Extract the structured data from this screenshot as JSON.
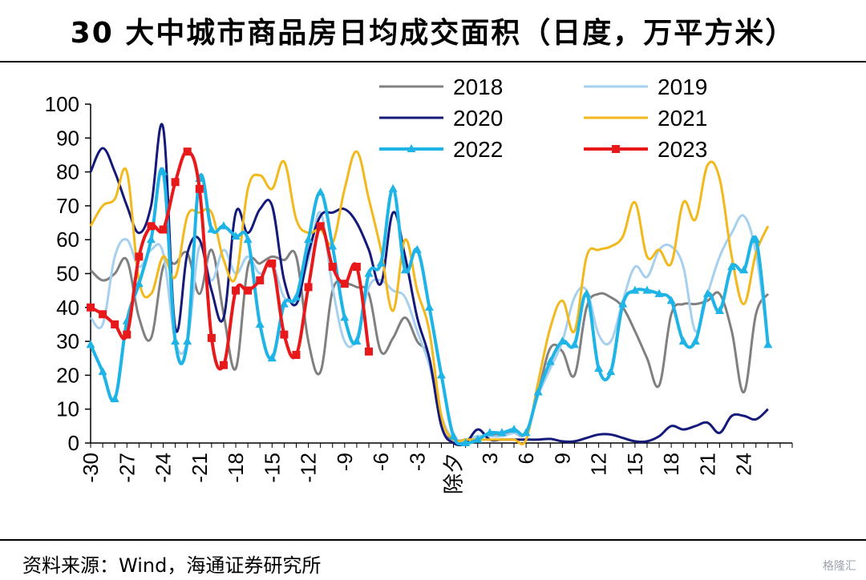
{
  "title": "30 大中城市商品房日均成交面积（日度，万平方米）",
  "source": "资料来源：Wind，海通证券研究所",
  "watermark": "格隆汇",
  "chart_data": {
    "type": "line",
    "xlabel": "",
    "ylabel": "",
    "xlim": [
      -30,
      28
    ],
    "ylim": [
      0,
      100
    ],
    "yticks": [
      0,
      10,
      20,
      30,
      40,
      50,
      60,
      70,
      80,
      90,
      100
    ],
    "xticks": [
      {
        "x": -30,
        "label": "-30"
      },
      {
        "x": -27,
        "label": "-27"
      },
      {
        "x": -24,
        "label": "-24"
      },
      {
        "x": -21,
        "label": "-21"
      },
      {
        "x": -18,
        "label": "-18"
      },
      {
        "x": -15,
        "label": "-15"
      },
      {
        "x": -12,
        "label": "-12"
      },
      {
        "x": -9,
        "label": "-9"
      },
      {
        "x": -6,
        "label": "-6"
      },
      {
        "x": -3,
        "label": "-3"
      },
      {
        "x": 0,
        "label": "除夕"
      },
      {
        "x": 3,
        "label": "3"
      },
      {
        "x": 6,
        "label": "6"
      },
      {
        "x": 9,
        "label": "9"
      },
      {
        "x": 12,
        "label": "12"
      },
      {
        "x": 15,
        "label": "15"
      },
      {
        "x": 18,
        "label": "18"
      },
      {
        "x": 21,
        "label": "21"
      },
      {
        "x": 24,
        "label": "24"
      }
    ],
    "legend_position": "top",
    "series": [
      {
        "name": "2018",
        "color": "#808080",
        "width": 3,
        "marker": "none",
        "x": [
          -30,
          -29,
          -28,
          -27,
          -26,
          -25,
          -24,
          -23,
          -22,
          -21,
          -20,
          -19,
          -18,
          -17,
          -16,
          -15,
          -14,
          -13,
          -12,
          -11,
          -10,
          -9,
          -8,
          -7,
          -6,
          -5,
          -4,
          -3,
          -2,
          -1,
          0,
          1,
          2,
          3,
          4,
          5,
          6,
          7,
          8,
          9,
          10,
          11,
          12,
          13,
          14,
          15,
          16,
          17,
          18,
          19,
          20,
          21,
          22,
          23,
          24,
          25,
          26
        ],
        "y": [
          51,
          48,
          50,
          54,
          37,
          31,
          52,
          53,
          56,
          44,
          57,
          38,
          22,
          52,
          53,
          55,
          54,
          55,
          30,
          21,
          45,
          47,
          46,
          44,
          27,
          31,
          37,
          30,
          25,
          5,
          1,
          1,
          2,
          2,
          3,
          3,
          3,
          15,
          28,
          27,
          20,
          40,
          44,
          43,
          40,
          33,
          25,
          17,
          38,
          41,
          41,
          42,
          44,
          33,
          15,
          38,
          44
        ]
      },
      {
        "name": "2019",
        "color": "#a7d0ee",
        "width": 3,
        "marker": "none",
        "x": [
          -30,
          -29,
          -28,
          -27,
          -26,
          -25,
          -24,
          -23,
          -22,
          -21,
          -20,
          -19,
          -18,
          -17,
          -16,
          -15,
          -14,
          -13,
          -12,
          -11,
          -10,
          -9,
          -8,
          -7,
          -6,
          -5,
          -4,
          -3,
          -2,
          -1,
          0,
          1,
          2,
          3,
          4,
          5,
          6,
          7,
          8,
          9,
          10,
          11,
          12,
          13,
          14,
          15,
          16,
          17,
          18,
          19,
          20,
          21,
          22,
          23,
          24,
          25,
          26
        ],
        "y": [
          37,
          35,
          55,
          60,
          52,
          57,
          56,
          30,
          30,
          58,
          48,
          57,
          50,
          55,
          50,
          53,
          43,
          43,
          54,
          68,
          46,
          30,
          31,
          46,
          48,
          45,
          43,
          33,
          23,
          8,
          1,
          1,
          2,
          2,
          2,
          3,
          3,
          14,
          22,
          30,
          43,
          45,
          32,
          30,
          42,
          52,
          49,
          57,
          58,
          52,
          33,
          44,
          55,
          62,
          67,
          56,
          30
        ]
      },
      {
        "name": "2020",
        "color": "#14197a",
        "width": 3,
        "marker": "none",
        "x": [
          -30,
          -29,
          -28,
          -27,
          -26,
          -25,
          -24,
          -23,
          -22,
          -21,
          -20,
          -19,
          -18,
          -17,
          -16,
          -15,
          -14,
          -13,
          -12,
          -11,
          -10,
          -9,
          -8,
          -7,
          -6,
          -5,
          -4,
          -3,
          -2,
          -1,
          0,
          1,
          2,
          3,
          4,
          5,
          6,
          7,
          8,
          9,
          10,
          11,
          12,
          13,
          14,
          15,
          16,
          17,
          18,
          19,
          20,
          21,
          22,
          23,
          24,
          25,
          26
        ],
        "y": [
          80,
          87,
          80,
          70,
          62,
          70,
          93,
          34,
          56,
          60,
          45,
          37,
          68,
          62,
          69,
          70,
          48,
          41,
          56,
          67,
          68,
          69,
          65,
          57,
          47,
          68,
          55,
          37,
          25,
          5,
          0,
          0,
          4,
          1,
          1,
          1,
          1,
          1,
          1.2,
          0.5,
          0.5,
          1.5,
          2.5,
          2.5,
          1.5,
          0.5,
          0.5,
          2,
          5,
          4,
          5,
          6,
          3,
          8,
          8,
          7,
          10
        ]
      },
      {
        "name": "2021",
        "color": "#f2b81c",
        "width": 3,
        "marker": "none",
        "x": [
          -30,
          -29,
          -28,
          -27,
          -26,
          -25,
          -24,
          -23,
          -22,
          -21,
          -20,
          -19,
          -18,
          -17,
          -16,
          -15,
          -14,
          -13,
          -12,
          -11,
          -10,
          -9,
          -8,
          -7,
          -6,
          -5,
          -4,
          -3,
          -2,
          -1,
          0,
          1,
          2,
          3,
          4,
          5,
          6,
          7,
          8,
          9,
          10,
          11,
          12,
          13,
          14,
          15,
          16,
          17,
          18,
          19,
          20,
          21,
          22,
          23,
          24,
          25,
          26
        ],
        "y": [
          64,
          70,
          72,
          80,
          48,
          44,
          55,
          49,
          67,
          68,
          68,
          54,
          49,
          75,
          79,
          75,
          83,
          66,
          62,
          63,
          59,
          75,
          86,
          72,
          57,
          39,
          60,
          45,
          33,
          8,
          1,
          1,
          1,
          1,
          1,
          1,
          1,
          18,
          34,
          42,
          33,
          55,
          57,
          58,
          61,
          71,
          55,
          57,
          53,
          71,
          66,
          82,
          78,
          55,
          41,
          56,
          64
        ]
      },
      {
        "name": "2022",
        "color": "#1fb4e6",
        "width": 4,
        "marker": "triangle",
        "x": [
          -30,
          -29,
          -28,
          -27,
          -26,
          -25,
          -24,
          -23,
          -22,
          -21,
          -20,
          -19,
          -18,
          -17,
          -16,
          -15,
          -14,
          -13,
          -12,
          -11,
          -10,
          -9,
          -8,
          -7,
          -6,
          -5,
          -4,
          -3,
          -2,
          -1,
          0,
          1,
          2,
          3,
          4,
          5,
          6,
          7,
          8,
          9,
          10,
          11,
          12,
          13,
          14,
          15,
          16,
          17,
          18,
          19,
          20,
          21,
          22,
          23,
          24,
          25,
          26
        ],
        "y": [
          29,
          21,
          13,
          36,
          47,
          60,
          80,
          30,
          30,
          78,
          63,
          64,
          61,
          60,
          35,
          25,
          41,
          43,
          60,
          74,
          58,
          37,
          30,
          50,
          53,
          75,
          51,
          57,
          40,
          20,
          2,
          0,
          1,
          3,
          3,
          4,
          3,
          15,
          24,
          30,
          29,
          44,
          22,
          21,
          41,
          45,
          45,
          44,
          42,
          30,
          30,
          44,
          39,
          52,
          51,
          60,
          29
        ]
      },
      {
        "name": "2023",
        "color": "#e8191b",
        "width": 4,
        "marker": "square",
        "x": [
          -30,
          -29,
          -28,
          -27,
          -26,
          -25,
          -24,
          -23,
          -22,
          -21,
          -20,
          -19,
          -18,
          -17,
          -16,
          -15,
          -14,
          -13,
          -12,
          -11,
          -10,
          -9,
          -8,
          -7
        ],
        "y": [
          40,
          38,
          35,
          32,
          55,
          64,
          63,
          77,
          86,
          75,
          31,
          23,
          45,
          45,
          48,
          53,
          32,
          26,
          46,
          64,
          52,
          47,
          52,
          27
        ]
      }
    ]
  }
}
